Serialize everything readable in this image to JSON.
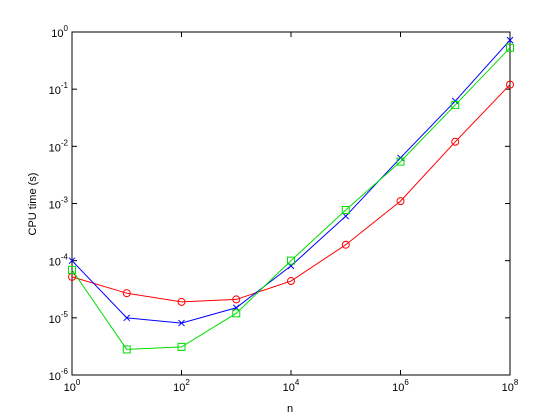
{
  "chart_data": {
    "type": "line",
    "x_label": "n",
    "y_label": "CPU time (s)",
    "x_log": true,
    "y_log": true,
    "grid": false,
    "x": [
      1,
      10,
      100,
      1000,
      10000,
      100000,
      1000000,
      10000000,
      100000000
    ],
    "xlim": [
      1,
      100000000
    ],
    "ylim": [
      1e-06,
      1
    ],
    "xticks": [
      {
        "value": 1,
        "label": "10^0"
      },
      {
        "value": 100,
        "label": "10^2"
      },
      {
        "value": 10000,
        "label": "10^4"
      },
      {
        "value": 1000000,
        "label": "10^6"
      },
      {
        "value": 100000000,
        "label": "10^8"
      }
    ],
    "yticks": [
      {
        "value": 1e-06,
        "label": "10^-6"
      },
      {
        "value": 1e-05,
        "label": "10^-5"
      },
      {
        "value": 0.0001,
        "label": "10^-4"
      },
      {
        "value": 0.001,
        "label": "10^-3"
      },
      {
        "value": 0.01,
        "label": "10^-2"
      },
      {
        "value": 0.1,
        "label": "10^-1"
      },
      {
        "value": 1,
        "label": "10^0"
      }
    ],
    "series": [
      {
        "color": "#ff0000",
        "marker": "circle",
        "values": [
          5.2e-05,
          2.7e-05,
          1.9e-05,
          2.1e-05,
          4.4e-05,
          0.00019,
          0.0011,
          0.012,
          0.12
        ]
      },
      {
        "color": "#0000ff",
        "marker": "x",
        "values": [
          0.0001,
          1e-05,
          8.1e-06,
          1.5e-05,
          8.1e-05,
          0.0006,
          0.0063,
          0.062,
          0.72
        ]
      },
      {
        "color": "#00dd00",
        "marker": "square",
        "values": [
          6.9e-05,
          2.8e-06,
          3.1e-06,
          1.2e-05,
          0.0001,
          0.00077,
          0.0054,
          0.053,
          0.53
        ]
      }
    ]
  }
}
